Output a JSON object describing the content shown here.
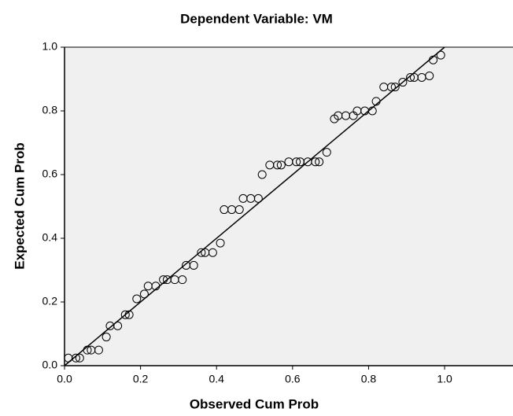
{
  "chart_data": {
    "type": "scatter",
    "title": "Dependent Variable: VM",
    "xlabel": "Observed Cum Prob",
    "ylabel": "Expected Cum Prob",
    "xlim": [
      0,
      1.18
    ],
    "ylim": [
      0,
      1
    ],
    "xticks": [
      {
        "value": 0,
        "label": "0.0"
      },
      {
        "value": 0.2,
        "label": "0.2"
      },
      {
        "value": 0.4,
        "label": "0.4"
      },
      {
        "value": 0.6,
        "label": "0.6"
      },
      {
        "value": 0.8,
        "label": "0.8"
      },
      {
        "value": 1,
        "label": "1.0"
      }
    ],
    "yticks": [
      {
        "value": 0,
        "label": "0.0"
      },
      {
        "value": 0.2,
        "label": "0.2"
      },
      {
        "value": 0.4,
        "label": "0.4"
      },
      {
        "value": 0.6,
        "label": "0.6"
      },
      {
        "value": 0.8,
        "label": "0.8"
      },
      {
        "value": 1,
        "label": "1.0"
      }
    ],
    "background": "#f0f0f0",
    "color": "#000000",
    "x": [
      0.01,
      0.03,
      0.04,
      0.06,
      0.07,
      0.09,
      0.11,
      0.12,
      0.14,
      0.16,
      0.17,
      0.19,
      0.21,
      0.22,
      0.24,
      0.26,
      0.27,
      0.29,
      0.31,
      0.32,
      0.34,
      0.36,
      0.37,
      0.39,
      0.41,
      0.42,
      0.44,
      0.46,
      0.47,
      0.49,
      0.51,
      0.52,
      0.54,
      0.56,
      0.57,
      0.59,
      0.61,
      0.62,
      0.64,
      0.66,
      0.67,
      0.69,
      0.71,
      0.72,
      0.74,
      0.76,
      0.77,
      0.79,
      0.81,
      0.82,
      0.84,
      0.86,
      0.87,
      0.89,
      0.91,
      0.92,
      0.94,
      0.96,
      0.97,
      0.99
    ],
    "values": [
      0.024,
      0.024,
      0.024,
      0.049,
      0.049,
      0.049,
      0.09,
      0.125,
      0.125,
      0.16,
      0.16,
      0.21,
      0.225,
      0.25,
      0.25,
      0.27,
      0.27,
      0.27,
      0.27,
      0.315,
      0.315,
      0.355,
      0.355,
      0.355,
      0.385,
      0.49,
      0.49,
      0.49,
      0.525,
      0.525,
      0.525,
      0.6,
      0.63,
      0.63,
      0.63,
      0.64,
      0.64,
      0.64,
      0.64,
      0.64,
      0.64,
      0.67,
      0.775,
      0.785,
      0.785,
      0.785,
      0.8,
      0.8,
      0.8,
      0.83,
      0.875,
      0.875,
      0.875,
      0.89,
      0.905,
      0.905,
      0.905,
      0.91,
      0.96,
      0.975
    ],
    "reference_line": {
      "x": [
        0,
        1
      ],
      "values": [
        0,
        1
      ]
    }
  }
}
